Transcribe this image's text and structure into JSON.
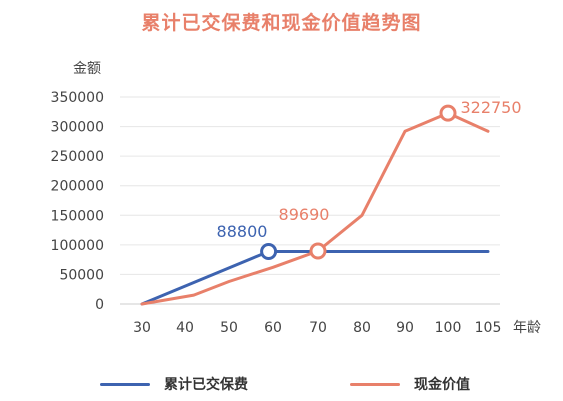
{
  "chart_data": {
    "type": "line",
    "title": "累计已交保费和现金价值趋势图",
    "ylabel": "金额",
    "xlabel": "年龄",
    "x": [
      30,
      40,
      50,
      60,
      70,
      80,
      90,
      100,
      105
    ],
    "xticks": [
      "30",
      "40",
      "50",
      "60",
      "70",
      "80",
      "90",
      "100",
      "105"
    ],
    "yticks": [
      "0",
      "50000",
      "100000",
      "150000",
      "200000",
      "250000",
      "300000",
      "350000"
    ],
    "ylim": [
      0,
      350000
    ],
    "grid": true,
    "legend_position": "bottom",
    "series": [
      {
        "name": "累计已交保费",
        "color": "#3d63b0",
        "points": [
          [
            30,
            0
          ],
          [
            59,
            88800
          ],
          [
            70,
            88800
          ],
          [
            80,
            88800
          ],
          [
            90,
            88800
          ],
          [
            100,
            88800
          ],
          [
            105,
            88800
          ]
        ],
        "marker_x": 59,
        "label": "88800"
      },
      {
        "name": "现金价值",
        "color": "#e8806a",
        "points": [
          [
            30,
            0
          ],
          [
            42,
            15000
          ],
          [
            50,
            38000
          ],
          [
            60,
            62000
          ],
          [
            70,
            89690
          ],
          [
            80,
            150000
          ],
          [
            90,
            292000
          ],
          [
            100,
            322750
          ],
          [
            105,
            292000
          ]
        ],
        "marker_x": 70,
        "label": "89690",
        "extra_marker_x": 100,
        "extra_label": "322750"
      }
    ]
  },
  "legend": {
    "items": [
      {
        "label": "累计已交保费",
        "color": "#3d63b0"
      },
      {
        "label": "现金价值",
        "color": "#e8806a"
      }
    ]
  }
}
